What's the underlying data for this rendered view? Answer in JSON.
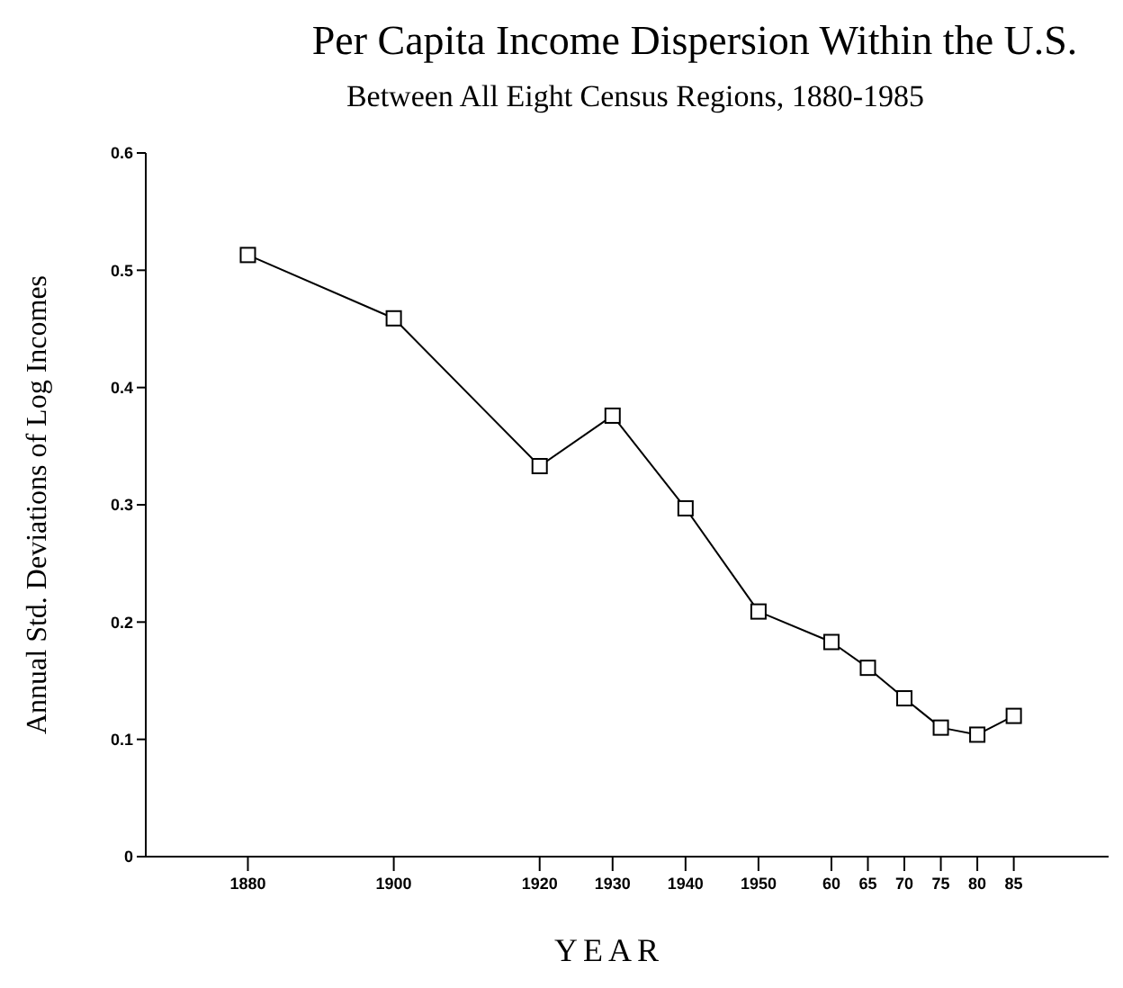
{
  "chart_data": {
    "type": "line",
    "title": "Per Capita Income Dispersion Within the U.S.",
    "subtitle": "Between All Eight Census Regions, 1880-1985",
    "xlabel": "YEAR",
    "ylabel": "Annual Std. Deviations of Log Incomes",
    "x": [
      1880,
      1900,
      1920,
      1930,
      1940,
      1950,
      1960,
      1965,
      1970,
      1975,
      1980,
      1985
    ],
    "series": [
      {
        "color": "#000000",
        "values": [
          0.513,
          0.459,
          0.333,
          0.376,
          0.297,
          0.209,
          0.183,
          0.161,
          0.135,
          0.11,
          0.104,
          0.12
        ]
      }
    ],
    "xlim": [
      1866,
      1998
    ],
    "xticks": [
      1880,
      1900,
      1920,
      1930,
      1940,
      1950,
      {
        "value": 1960,
        "label": "60"
      },
      {
        "value": 1965,
        "label": "65"
      },
      {
        "value": 1970,
        "label": "70"
      },
      {
        "value": 1975,
        "label": "75"
      },
      {
        "value": 1980,
        "label": "80"
      },
      {
        "value": 1985,
        "label": "85"
      }
    ],
    "ylim": [
      0,
      0.6
    ],
    "yticks": [
      0,
      0.1,
      0.2,
      0.3,
      0.4,
      0.5,
      0.6
    ],
    "grid": false,
    "legend": false,
    "marker": "square",
    "line_style": "solid"
  }
}
